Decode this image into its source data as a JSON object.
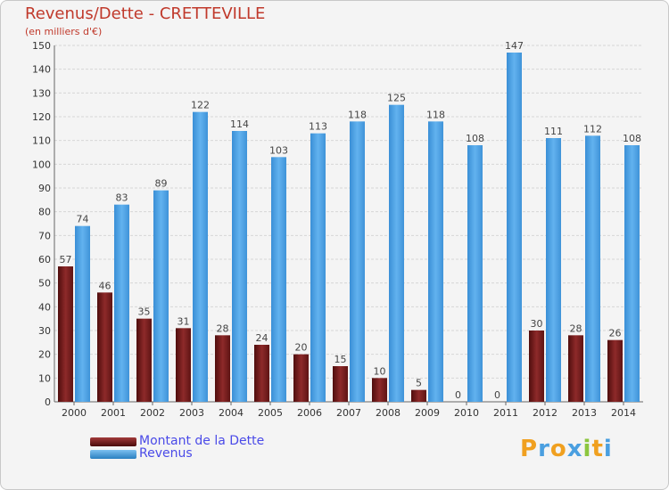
{
  "chart_data": {
    "type": "bar",
    "title": "Revenus/Dette - CRETTEVILLE",
    "subtitle": "(en milliers d'€)",
    "categories": [
      "2000",
      "2001",
      "2002",
      "2003",
      "2004",
      "2005",
      "2006",
      "2007",
      "2008",
      "2009",
      "2010",
      "2011",
      "2012",
      "2013",
      "2014"
    ],
    "series": [
      {
        "name": "Montant de la Dette",
        "color": "#7a1f1f",
        "values": [
          57,
          46,
          35,
          31,
          28,
          24,
          20,
          15,
          10,
          5,
          0,
          0,
          30,
          28,
          26
        ]
      },
      {
        "name": "Revenus",
        "color": "#4a9fe0",
        "values": [
          74,
          83,
          89,
          122,
          114,
          103,
          113,
          118,
          125,
          118,
          108,
          147,
          111,
          112,
          108
        ]
      }
    ],
    "ylim": [
      0,
      150
    ],
    "yticks": [
      0,
      10,
      20,
      30,
      40,
      50,
      60,
      70,
      80,
      90,
      100,
      110,
      120,
      130,
      140,
      150
    ],
    "grid": true,
    "legend_position": "bottom-left"
  },
  "logo": {
    "letters": [
      "P",
      "r",
      "o",
      "x",
      "i",
      "t",
      "i"
    ],
    "colors": [
      "#f0a020",
      "#4a9fe0",
      "#f0a020",
      "#4a9fe0",
      "#8cc63f",
      "#f0a020",
      "#4a9fe0"
    ]
  }
}
